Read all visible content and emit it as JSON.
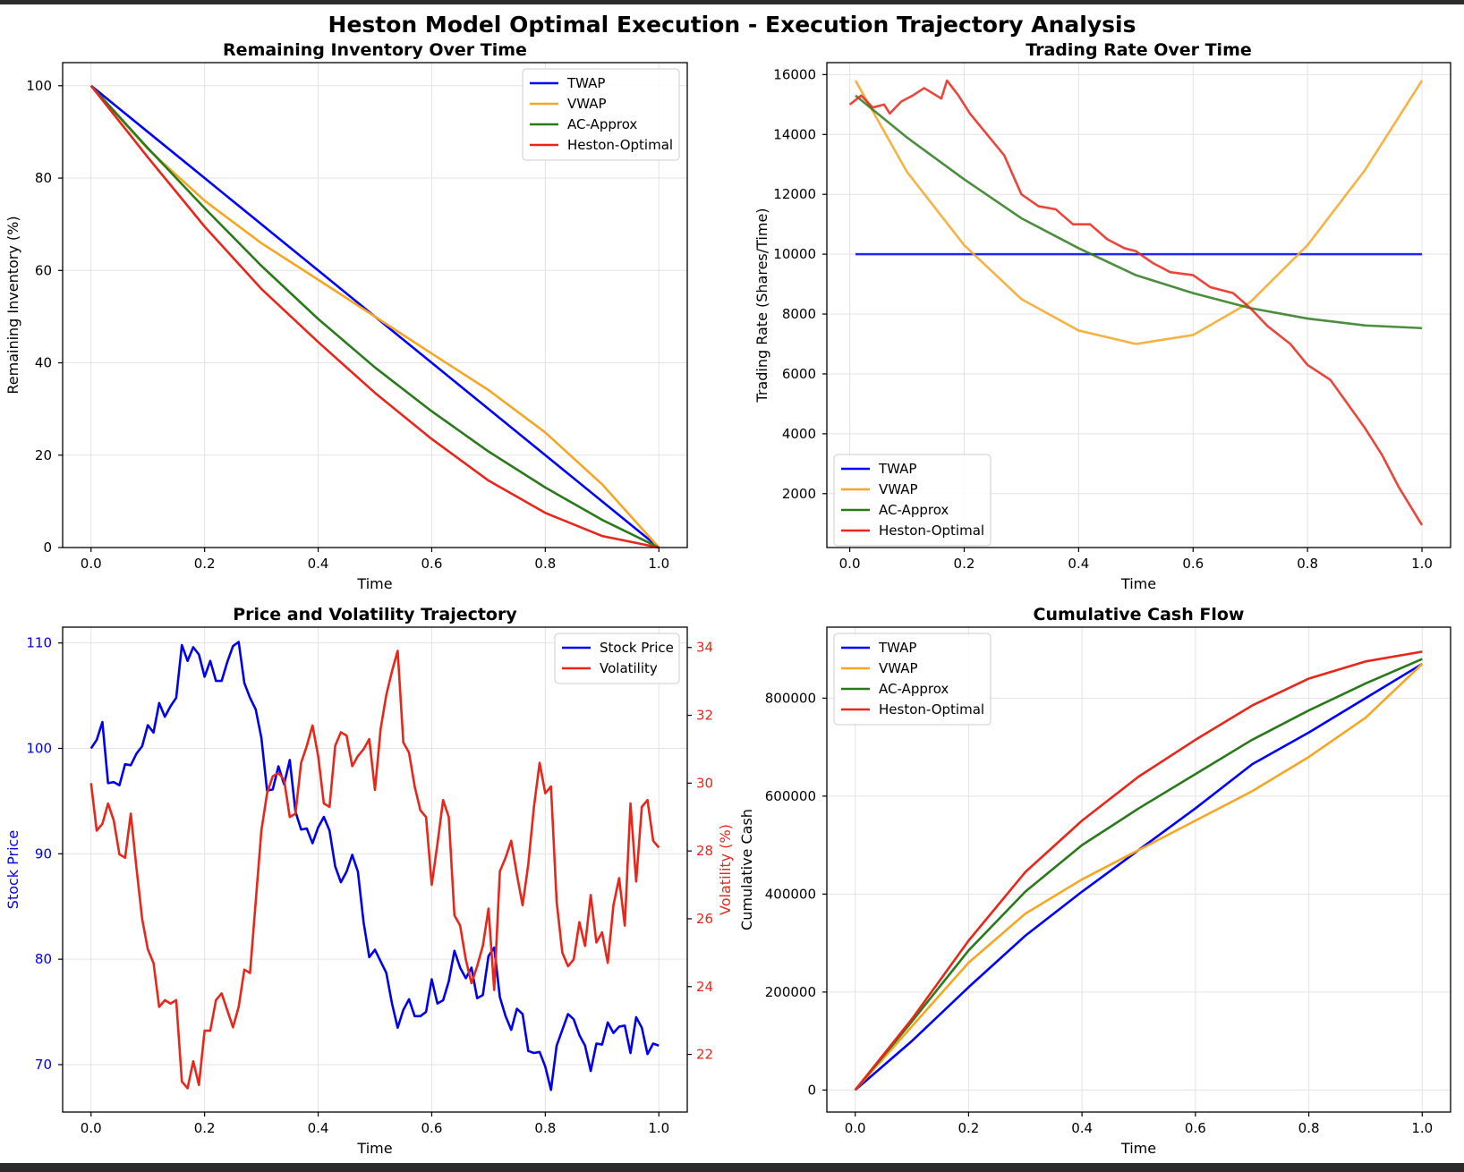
{
  "figure": {
    "suptitle": "Heston Model Optimal Execution - Execution Trajectory Analysis"
  },
  "colors": {
    "TWAP": "#0000ff",
    "VWAP": "#f5a623",
    "AC-Approx": "#2a7a1c",
    "Heston-Optimal": "#e8261a",
    "stock": "#0000ee",
    "vol": "#e8261a"
  },
  "chart_data": [
    {
      "id": "inventory",
      "type": "line",
      "title": "Remaining Inventory Over Time",
      "xlabel": "Time",
      "ylabel": "Remaining Inventory (%)",
      "xlim": [
        -0.05,
        1.05
      ],
      "ylim": [
        0,
        105
      ],
      "xticks": [
        0,
        0.2,
        0.4,
        0.6,
        0.8,
        1.0
      ],
      "xtick_labels": [
        "0.0",
        "0.2",
        "0.4",
        "0.6",
        "0.8",
        "1.0"
      ],
      "yticks": [
        0,
        20,
        40,
        60,
        80,
        100
      ],
      "ytick_labels": [
        "0",
        "20",
        "40",
        "60",
        "80",
        "100"
      ],
      "legend": "top-right",
      "x": [
        0,
        0.1,
        0.2,
        0.3,
        0.4,
        0.5,
        0.6,
        0.7,
        0.8,
        0.9,
        1.0
      ],
      "series": [
        {
          "name": "TWAP",
          "values": [
            100,
            90,
            80,
            70,
            60,
            50,
            40,
            30,
            20,
            10,
            0
          ]
        },
        {
          "name": "VWAP",
          "values": [
            100,
            86.3,
            75.1,
            65.9,
            58,
            50,
            42,
            34.1,
            24.9,
            13.7,
            0
          ]
        },
        {
          "name": "AC-Approx",
          "values": [
            100,
            86.5,
            73.5,
            61,
            49.5,
            39,
            29.5,
            20.8,
            13,
            6,
            0
          ]
        },
        {
          "name": "Heston-Optimal",
          "values": [
            100,
            84.5,
            69.5,
            56,
            44.5,
            33.5,
            23.5,
            14.5,
            7.5,
            2.5,
            0
          ]
        }
      ]
    },
    {
      "id": "rate",
      "type": "line",
      "title": "Trading Rate Over Time",
      "xlabel": "Time",
      "ylabel": "Trading Rate (Shares/Time)",
      "xlim": [
        -0.04,
        1.05
      ],
      "ylim": [
        200,
        16400
      ],
      "xticks": [
        0,
        0.2,
        0.4,
        0.6,
        0.8,
        1.0
      ],
      "xtick_labels": [
        "0.0",
        "0.2",
        "0.4",
        "0.6",
        "0.8",
        "1.0"
      ],
      "yticks": [
        2000,
        4000,
        6000,
        8000,
        10000,
        12000,
        14000,
        16000
      ],
      "ytick_labels": [
        "2000",
        "4000",
        "6000",
        "8000",
        "10000",
        "12000",
        "14000",
        "16000"
      ],
      "legend": "bottom-left",
      "series": [
        {
          "name": "TWAP",
          "x": [
            0.01,
            1.0
          ],
          "values": [
            10000,
            10000
          ]
        },
        {
          "name": "VWAP",
          "x": [
            0.01,
            0.1,
            0.2,
            0.3,
            0.4,
            0.5,
            0.6,
            0.7,
            0.8,
            0.9,
            1.0
          ],
          "values": [
            15800,
            12750,
            10300,
            8500,
            7450,
            7000,
            7300,
            8400,
            10300,
            12800,
            15800
          ]
        },
        {
          "name": "AC-Approx",
          "x": [
            0.01,
            0.1,
            0.2,
            0.3,
            0.4,
            0.5,
            0.6,
            0.7,
            0.8,
            0.9,
            1.0
          ],
          "values": [
            15300,
            13900,
            12500,
            11200,
            10200,
            9300,
            8700,
            8200,
            7850,
            7620,
            7530
          ]
        },
        {
          "name": "Heston-Optimal",
          "x": [
            0.0,
            0.02,
            0.04,
            0.06,
            0.07,
            0.09,
            0.11,
            0.13,
            0.16,
            0.17,
            0.19,
            0.21,
            0.24,
            0.27,
            0.3,
            0.33,
            0.36,
            0.39,
            0.42,
            0.45,
            0.48,
            0.5,
            0.53,
            0.56,
            0.6,
            0.63,
            0.67,
            0.7,
            0.73,
            0.77,
            0.8,
            0.84,
            0.87,
            0.9,
            0.93,
            0.96,
            1.0
          ],
          "values": [
            15000,
            15300,
            14900,
            15000,
            14700,
            15100,
            15300,
            15550,
            15200,
            15800,
            15300,
            14700,
            14000,
            13300,
            12000,
            11600,
            11500,
            11000,
            11000,
            10500,
            10200,
            10100,
            9700,
            9400,
            9300,
            8900,
            8700,
            8200,
            7600,
            7000,
            6300,
            5800,
            5000,
            4200,
            3300,
            2200,
            950
          ]
        }
      ]
    },
    {
      "id": "price_vol",
      "type": "line",
      "title": "Price and Volatility Trajectory",
      "xlabel": "Time",
      "ylabel": "Stock Price",
      "ylabel_right": "Volatility (%)",
      "xlim": [
        -0.05,
        1.05
      ],
      "ylim": [
        65.5,
        111.5
      ],
      "ylim_right": [
        20.3,
        34.6
      ],
      "xticks": [
        0,
        0.2,
        0.4,
        0.6,
        0.8,
        1.0
      ],
      "xtick_labels": [
        "0.0",
        "0.2",
        "0.4",
        "0.6",
        "0.8",
        "1.0"
      ],
      "yticks": [
        70,
        80,
        90,
        100,
        110
      ],
      "ytick_labels": [
        "70",
        "80",
        "90",
        "100",
        "110"
      ],
      "yticks_right": [
        22,
        24,
        26,
        28,
        30,
        32,
        34
      ],
      "ytick_labels_right": [
        "22",
        "24",
        "26",
        "28",
        "30",
        "32",
        "34"
      ],
      "legend": "top-right",
      "x": [
        0.0,
        0.01,
        0.02,
        0.03,
        0.04,
        0.05,
        0.06,
        0.07,
        0.08,
        0.09,
        0.1,
        0.11,
        0.12,
        0.13,
        0.14,
        0.15,
        0.16,
        0.17,
        0.18,
        0.19,
        0.2,
        0.21,
        0.22,
        0.23,
        0.24,
        0.25,
        0.26,
        0.27,
        0.28,
        0.29,
        0.3,
        0.31,
        0.32,
        0.33,
        0.34,
        0.35,
        0.36,
        0.37,
        0.38,
        0.39,
        0.4,
        0.41,
        0.42,
        0.43,
        0.44,
        0.45,
        0.46,
        0.47,
        0.48,
        0.49,
        0.5,
        0.51,
        0.52,
        0.53,
        0.54,
        0.55,
        0.56,
        0.57,
        0.58,
        0.59,
        0.6,
        0.61,
        0.62,
        0.63,
        0.64,
        0.65,
        0.66,
        0.67,
        0.68,
        0.69,
        0.7,
        0.71,
        0.72,
        0.73,
        0.74,
        0.75,
        0.76,
        0.77,
        0.78,
        0.79,
        0.8,
        0.81,
        0.82,
        0.83,
        0.84,
        0.85,
        0.86,
        0.87,
        0.88,
        0.89,
        0.9,
        0.91,
        0.92,
        0.93,
        0.94,
        0.95,
        0.96,
        0.97,
        0.98,
        0.99,
        1.0
      ],
      "series": [
        {
          "name": "Stock Price",
          "axis": "left",
          "values": [
            100,
            100.8,
            102.5,
            96.7,
            96.8,
            96.5,
            98.5,
            98.4,
            99.5,
            100.2,
            102.2,
            101.5,
            104.3,
            103,
            104,
            104.8,
            109.8,
            108.3,
            109.6,
            108.9,
            106.8,
            108.3,
            106.4,
            106.4,
            108.2,
            109.7,
            110.1,
            106.2,
            104.8,
            103.7,
            101,
            96,
            96.1,
            98.3,
            96.6,
            98.9,
            94,
            92.3,
            92.4,
            91,
            92.5,
            93.5,
            92.2,
            88.8,
            87.3,
            88.3,
            89.9,
            88.3,
            83.5,
            80.2,
            80.9,
            79.8,
            78.7,
            75.8,
            73.5,
            75.2,
            76.2,
            74.6,
            74.6,
            75,
            78.1,
            75.8,
            76.1,
            77.9,
            80.8,
            79.2,
            78.2,
            79.2,
            76.3,
            76.6,
            80.3,
            81.1,
            76.4,
            74.6,
            73.3,
            75.3,
            74.8,
            71.3,
            71.1,
            71.2,
            69.8,
            67.6,
            71.8,
            73.3,
            74.8,
            74.3,
            72.8,
            71.8,
            69.4,
            72,
            71.9,
            74,
            73,
            73.6,
            73.7,
            71.1,
            74.5,
            73.5,
            71,
            72,
            71.8
          ]
        },
        {
          "name": "Volatility",
          "axis": "right",
          "values": [
            30,
            28.6,
            28.8,
            29.4,
            28.9,
            27.9,
            27.8,
            29.1,
            27.5,
            26,
            25.1,
            24.7,
            23.4,
            23.6,
            23.5,
            23.6,
            21.2,
            21,
            21.8,
            21.1,
            22.7,
            22.7,
            23.6,
            23.8,
            23.3,
            22.8,
            23.4,
            24.5,
            24.4,
            26.5,
            28.6,
            29.7,
            30.2,
            30.3,
            30.1,
            29,
            29.1,
            30.6,
            31.1,
            31.7,
            30.8,
            29.4,
            29.3,
            31.1,
            31.5,
            31.4,
            30.5,
            30.8,
            31,
            31.3,
            29.8,
            31.6,
            32.6,
            33.3,
            33.9,
            31.2,
            30.9,
            29.9,
            29.2,
            29,
            27,
            28.2,
            29.5,
            29,
            26.1,
            25.8,
            24.8,
            24.1,
            24.6,
            25.2,
            26.3,
            23.9,
            27.4,
            27.8,
            28.3,
            27.3,
            26.4,
            27.6,
            29.3,
            30.6,
            29.7,
            29.9,
            26.5,
            25,
            24.6,
            24.8,
            25.9,
            25.2,
            26.7,
            25.3,
            25.6,
            24.7,
            26.4,
            27.2,
            25.8,
            29.4,
            27.1,
            29.3,
            29.5,
            28.3,
            28.1
          ]
        }
      ]
    },
    {
      "id": "cash",
      "type": "line",
      "title": "Cumulative Cash Flow",
      "xlabel": "Time",
      "ylabel": "Cumulative Cash",
      "xlim": [
        -0.05,
        1.05
      ],
      "ylim": [
        -45000,
        945000
      ],
      "xticks": [
        0,
        0.2,
        0.4,
        0.6,
        0.8,
        1.0
      ],
      "xtick_labels": [
        "0.0",
        "0.2",
        "0.4",
        "0.6",
        "0.8",
        "1.0"
      ],
      "yticks": [
        0,
        200000,
        400000,
        600000,
        800000
      ],
      "ytick_labels": [
        "0",
        "200000",
        "400000",
        "600000",
        "800000"
      ],
      "legend": "top-left",
      "x": [
        0,
        0.1,
        0.2,
        0.3,
        0.4,
        0.5,
        0.6,
        0.7,
        0.8,
        0.9,
        1.0
      ],
      "series": [
        {
          "name": "TWAP",
          "values": [
            0,
            100000,
            210000,
            315000,
            405000,
            490000,
            575000,
            665000,
            730000,
            800000,
            870000
          ]
        },
        {
          "name": "VWAP",
          "values": [
            0,
            130000,
            260000,
            360000,
            430000,
            490000,
            550000,
            610000,
            680000,
            760000,
            870000
          ]
        },
        {
          "name": "AC-Approx",
          "values": [
            0,
            140000,
            285000,
            405000,
            500000,
            575000,
            645000,
            715000,
            775000,
            830000,
            880000
          ]
        },
        {
          "name": "Heston-Optimal",
          "values": [
            0,
            145000,
            305000,
            445000,
            550000,
            640000,
            715000,
            785000,
            840000,
            875000,
            895000
          ]
        }
      ]
    }
  ]
}
